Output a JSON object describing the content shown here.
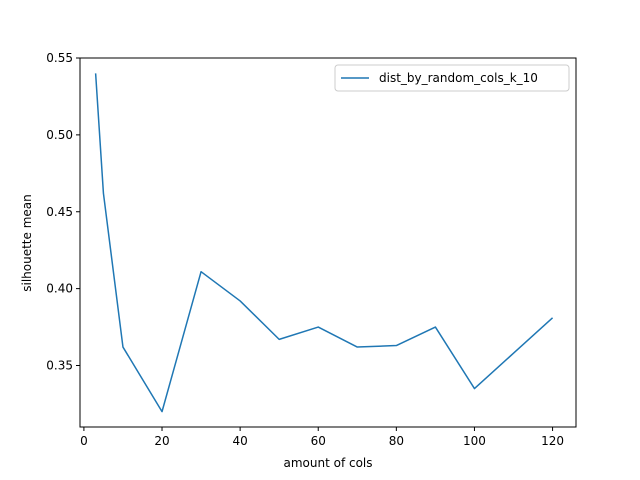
{
  "chart_data": {
    "type": "line",
    "title": "",
    "xlabel": "amount of cols",
    "ylabel": "silhouette mean",
    "xlim": [
      -1,
      126
    ],
    "ylim": [
      0.31,
      0.55
    ],
    "xticks": [
      0,
      20,
      40,
      60,
      80,
      100,
      120
    ],
    "yticks": [
      0.35,
      0.4,
      0.45,
      0.5,
      0.55
    ],
    "xtick_labels": [
      "0",
      "20",
      "40",
      "60",
      "80",
      "100",
      "120"
    ],
    "ytick_labels": [
      "0.35",
      "0.40",
      "0.45",
      "0.50",
      "0.55"
    ],
    "grid": false,
    "legend_position": "upper right",
    "series": [
      {
        "name": "dist_by_random_cols_k_10",
        "color": "#1f77b4",
        "x": [
          3,
          5,
          10,
          20,
          30,
          40,
          50,
          60,
          70,
          80,
          90,
          100,
          110,
          120
        ],
        "y": [
          0.54,
          0.462,
          0.362,
          0.32,
          0.411,
          0.392,
          0.367,
          0.375,
          0.362,
          0.363,
          0.375,
          0.335,
          0.358,
          0.381
        ]
      }
    ]
  }
}
